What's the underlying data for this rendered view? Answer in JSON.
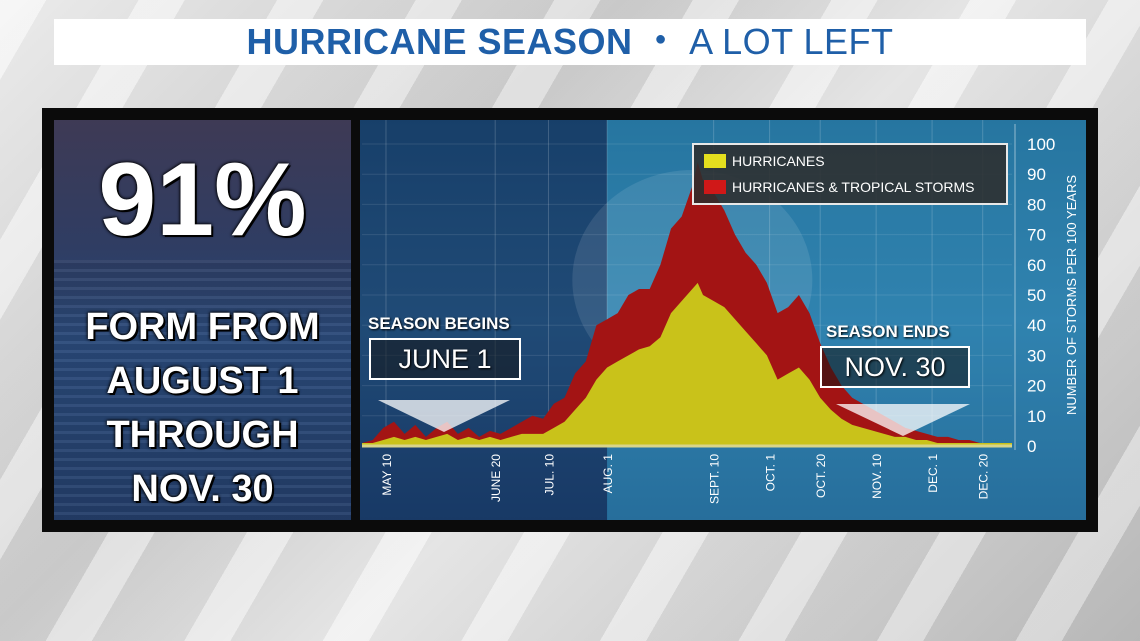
{
  "header": {
    "title": "HURRICANE SEASON",
    "subtitle": "A LOT LEFT"
  },
  "left_panel": {
    "percent": "91%",
    "lines": [
      "FORM FROM",
      "AUGUST 1",
      "THROUGH",
      "NOV. 30"
    ]
  },
  "season_markers": {
    "begin_label": "SEASON BEGINS",
    "begin_date": "JUNE 1",
    "end_label": "SEASON ENDS",
    "end_date": "NOV. 30"
  },
  "colors": {
    "hurricanes": "#c9c21a",
    "storms": "#a31414",
    "highlight": "#2d9fc9"
  },
  "chart_data": {
    "type": "area",
    "title": "",
    "xlabel": "",
    "ylabel": "NUMBER OF STORMS PER 100 YEARS",
    "ylim": [
      0,
      100
    ],
    "y_ticks": [
      0,
      10,
      20,
      30,
      40,
      50,
      60,
      70,
      80,
      90,
      100
    ],
    "x_range": [
      "May 1",
      "Dec 31"
    ],
    "x_ticks": [
      {
        "label": "MAY 10",
        "day": 9
      },
      {
        "label": "JUNE 20",
        "day": 50
      },
      {
        "label": "JUL. 10",
        "day": 70
      },
      {
        "label": "AUG. 1",
        "day": 92
      },
      {
        "label": "SEPT. 10",
        "day": 132
      },
      {
        "label": "OCT. 1",
        "day": 153
      },
      {
        "label": "OCT. 20",
        "day": 172
      },
      {
        "label": "NOV. 10",
        "day": 193
      },
      {
        "label": "DEC. 1",
        "day": 214
      },
      {
        "label": "DEC. 20",
        "day": 233
      }
    ],
    "legend_position": "top-right",
    "series": [
      {
        "name": "HURRICANES & TROPICAL STORMS",
        "color": "#a31414",
        "points": [
          [
            0,
            1
          ],
          [
            4,
            2
          ],
          [
            8,
            6
          ],
          [
            12,
            8
          ],
          [
            16,
            4
          ],
          [
            20,
            7
          ],
          [
            24,
            3
          ],
          [
            28,
            6
          ],
          [
            32,
            8
          ],
          [
            36,
            4
          ],
          [
            40,
            6
          ],
          [
            44,
            3
          ],
          [
            48,
            5
          ],
          [
            52,
            4
          ],
          [
            56,
            6
          ],
          [
            60,
            8
          ],
          [
            64,
            10
          ],
          [
            68,
            9
          ],
          [
            72,
            14
          ],
          [
            76,
            16
          ],
          [
            80,
            24
          ],
          [
            84,
            28
          ],
          [
            88,
            40
          ],
          [
            92,
            42
          ],
          [
            96,
            44
          ],
          [
            100,
            50
          ],
          [
            104,
            52
          ],
          [
            108,
            52
          ],
          [
            112,
            60
          ],
          [
            116,
            72
          ],
          [
            120,
            76
          ],
          [
            124,
            86
          ],
          [
            126,
            94
          ],
          [
            128,
            88
          ],
          [
            132,
            84
          ],
          [
            136,
            78
          ],
          [
            140,
            70
          ],
          [
            144,
            64
          ],
          [
            148,
            60
          ],
          [
            152,
            54
          ],
          [
            156,
            44
          ],
          [
            160,
            46
          ],
          [
            164,
            50
          ],
          [
            168,
            44
          ],
          [
            172,
            34
          ],
          [
            176,
            26
          ],
          [
            180,
            20
          ],
          [
            184,
            16
          ],
          [
            188,
            14
          ],
          [
            192,
            12
          ],
          [
            196,
            10
          ],
          [
            200,
            8
          ],
          [
            204,
            6
          ],
          [
            208,
            5
          ],
          [
            212,
            4
          ],
          [
            216,
            3
          ],
          [
            220,
            3
          ],
          [
            224,
            2
          ],
          [
            228,
            2
          ],
          [
            232,
            1
          ],
          [
            236,
            1
          ],
          [
            240,
            1
          ],
          [
            244,
            1
          ]
        ]
      },
      {
        "name": "HURRICANES",
        "color": "#c9c21a",
        "points": [
          [
            0,
            1
          ],
          [
            4,
            1
          ],
          [
            8,
            2
          ],
          [
            12,
            3
          ],
          [
            16,
            2
          ],
          [
            20,
            3
          ],
          [
            24,
            2
          ],
          [
            28,
            3
          ],
          [
            32,
            4
          ],
          [
            36,
            2
          ],
          [
            40,
            3
          ],
          [
            44,
            2
          ],
          [
            48,
            3
          ],
          [
            52,
            2
          ],
          [
            56,
            3
          ],
          [
            60,
            4
          ],
          [
            64,
            4
          ],
          [
            68,
            4
          ],
          [
            72,
            6
          ],
          [
            76,
            8
          ],
          [
            80,
            12
          ],
          [
            84,
            16
          ],
          [
            88,
            22
          ],
          [
            92,
            26
          ],
          [
            96,
            28
          ],
          [
            100,
            30
          ],
          [
            104,
            32
          ],
          [
            108,
            33
          ],
          [
            112,
            36
          ],
          [
            116,
            44
          ],
          [
            120,
            48
          ],
          [
            124,
            52
          ],
          [
            126,
            54
          ],
          [
            128,
            50
          ],
          [
            132,
            48
          ],
          [
            136,
            46
          ],
          [
            140,
            42
          ],
          [
            144,
            38
          ],
          [
            148,
            34
          ],
          [
            152,
            30
          ],
          [
            156,
            22
          ],
          [
            160,
            24
          ],
          [
            164,
            26
          ],
          [
            168,
            22
          ],
          [
            172,
            16
          ],
          [
            176,
            12
          ],
          [
            180,
            9
          ],
          [
            184,
            7
          ],
          [
            188,
            6
          ],
          [
            192,
            5
          ],
          [
            196,
            4
          ],
          [
            200,
            3
          ],
          [
            204,
            3
          ],
          [
            208,
            2
          ],
          [
            212,
            2
          ],
          [
            216,
            1
          ],
          [
            220,
            1
          ],
          [
            224,
            1
          ],
          [
            228,
            1
          ],
          [
            232,
            1
          ],
          [
            236,
            1
          ],
          [
            240,
            1
          ],
          [
            244,
            1
          ]
        ]
      }
    ]
  }
}
